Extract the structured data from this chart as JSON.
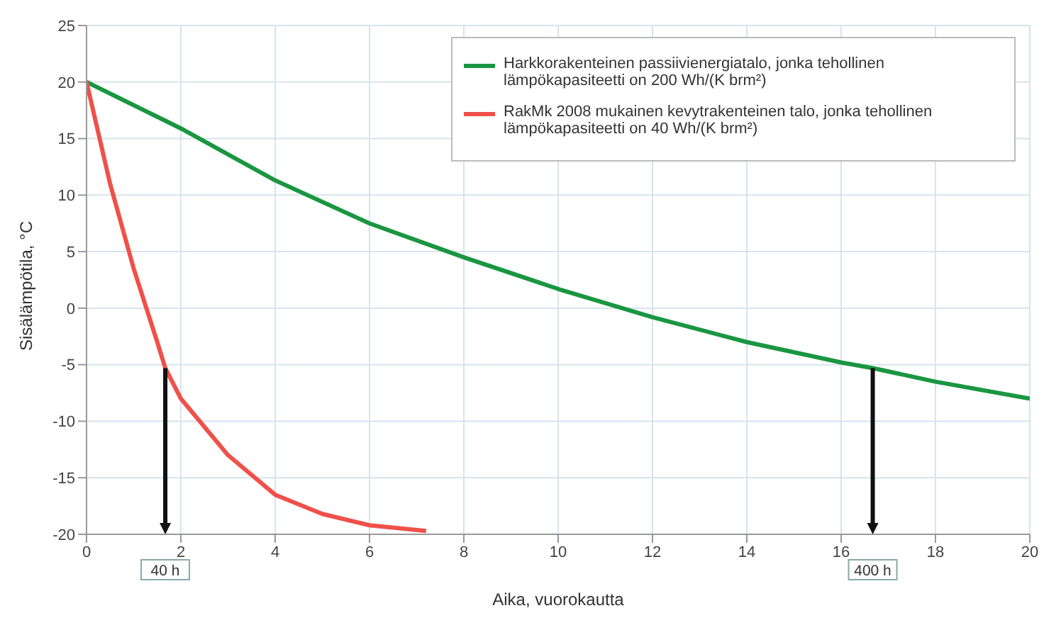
{
  "chart_data": {
    "type": "line",
    "xlabel": "Aika, vuorokautta",
    "ylabel": "Sisälämpötila, °C",
    "xlim": [
      0,
      20
    ],
    "xticks": [
      0,
      2,
      4,
      6,
      8,
      10,
      12,
      14,
      16,
      18,
      20
    ],
    "ylim": [
      -20,
      25
    ],
    "yticks": [
      -20,
      -15,
      -10,
      -5,
      0,
      5,
      10,
      15,
      20,
      25
    ],
    "grid": true,
    "legend": "top right",
    "marker": "none",
    "line_style": "solid",
    "series": [
      {
        "name": "Harkkorakenteinen passiivienergiatalo, jonka tehollinen lämpökapasiteetti on 200 Wh/(K brm²)",
        "color": "#1a9641",
        "x": [
          0,
          2,
          4,
          6,
          8,
          10,
          12,
          14,
          16,
          16.67,
          18,
          20
        ],
        "values": [
          20,
          15.9,
          11.3,
          7.5,
          4.5,
          1.7,
          -0.8,
          -3,
          -4.8,
          -5.3,
          -6.5,
          -8
        ]
      },
      {
        "name": "RakMk 2008 mukainen kevytrakenteinen talo, jonka tehollinen lämpökapasiteetti on 40 Wh/(K brm²)",
        "color": "#f0504a",
        "x": [
          0,
          0.5,
          1,
          1.5,
          1.67,
          2,
          3,
          4,
          5,
          6,
          7.2
        ],
        "values": [
          20,
          11,
          3.5,
          -3,
          -5.3,
          -8,
          -13,
          -16.5,
          -18.2,
          -19.2,
          -19.7
        ]
      }
    ],
    "ref_lines": [
      {
        "axis": "x",
        "value": 1.67,
        "label": "40 h",
        "color": "#111111"
      },
      {
        "axis": "x",
        "value": 16.67,
        "label": "400 h",
        "color": "#111111"
      }
    ]
  }
}
